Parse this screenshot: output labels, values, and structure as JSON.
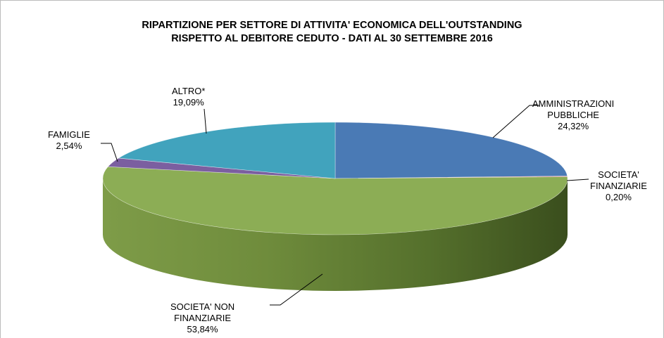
{
  "chart_data": {
    "type": "pie",
    "title_line1": "RIPARTIZIONE PER SETTORE DI ATTIVITA' ECONOMICA DELL'OUTSTANDING",
    "title_line2": "RISPETTO AL DEBITORE CEDUTO - DATI AL 30 SETTEMBRE 2016",
    "slices": [
      {
        "name_line1": "AMMINISTRAZIONI",
        "name_line2": "PUBBLICHE",
        "value_label": "24,32%",
        "value": 24.32,
        "color": "#4a7ab5"
      },
      {
        "name_line1": "SOCIETA'",
        "name_line2": "FINANZIARIE",
        "value_label": "0,20%",
        "value": 0.2,
        "color": "#c0504d"
      },
      {
        "name_line1": "SOCIETA' NON",
        "name_line2": "FINANZIARIE",
        "value_label": "53,84%",
        "value": 53.84,
        "color": "#8cad55"
      },
      {
        "name_line1": "FAMIGLIE",
        "name_line2": "",
        "value_label": "2,54%",
        "value": 2.54,
        "color": "#7b5fa0"
      },
      {
        "name_line1": "ALTRO*",
        "name_line2": "",
        "value_label": "19,09%",
        "value": 19.09,
        "color": "#41a3bd"
      }
    ]
  }
}
